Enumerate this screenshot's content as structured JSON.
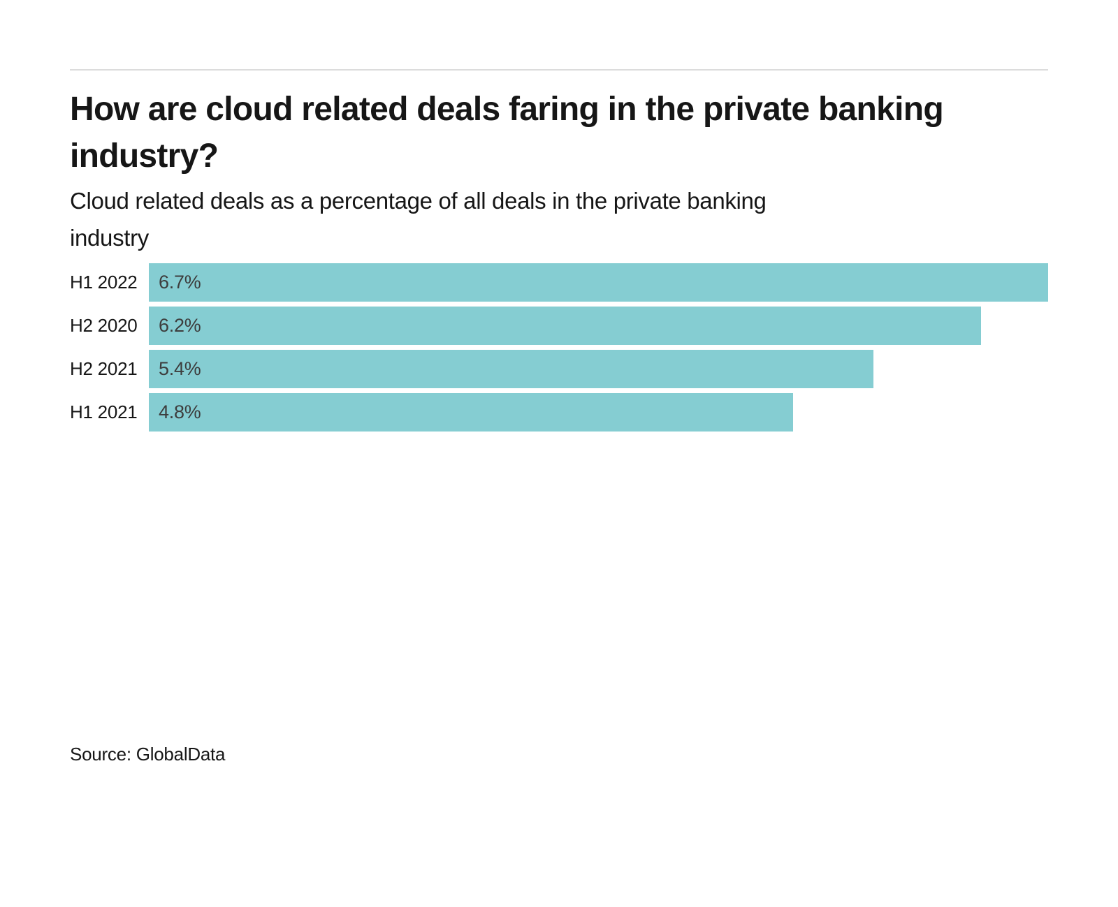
{
  "header": {
    "title_lines": [
      "How are cloud related deals faring in the private banking",
      "industry?"
    ],
    "subtitle_lines": [
      "Cloud related deals as a percentage of all deals in the private banking",
      "industry"
    ]
  },
  "chart_data": {
    "type": "bar",
    "orientation": "horizontal",
    "title": "How are cloud related deals faring in the private banking industry?",
    "subtitle": "Cloud related deals as a percentage of all deals in the private banking industry",
    "categories": [
      "H1 2022",
      "H2 2020",
      "H2 2021",
      "H1 2021"
    ],
    "values": [
      6.7,
      6.2,
      5.4,
      4.8
    ],
    "value_labels": [
      "6.7%",
      "6.2%",
      "5.4%",
      "4.8%"
    ],
    "xlim": [
      0,
      6.7
    ],
    "grid": false,
    "legend": false,
    "bar_color": "#85cdd2",
    "value_label_color": "#3d3d3d"
  },
  "footer": {
    "source": "Source: GlobalData"
  },
  "colors": {
    "divider": "#dcdcdc",
    "text": "#161616"
  }
}
